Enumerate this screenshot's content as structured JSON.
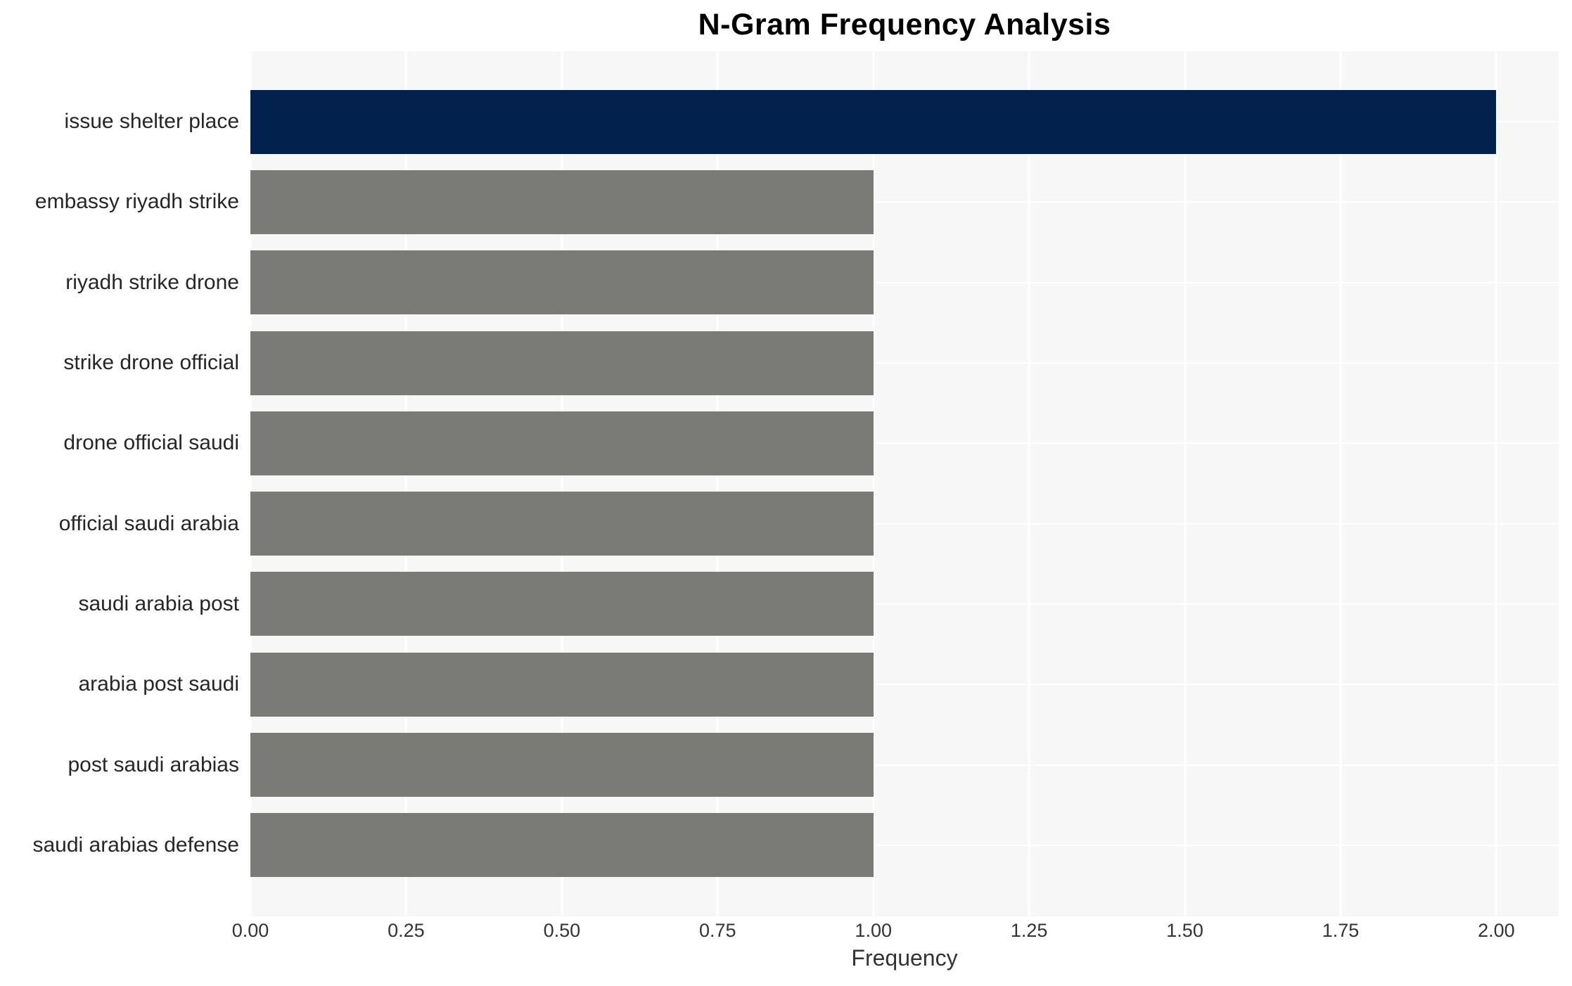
{
  "chart_data": {
    "type": "bar",
    "orientation": "horizontal",
    "title": "N-Gram Frequency Analysis",
    "xlabel": "Frequency",
    "ylabel": "",
    "categories": [
      "issue shelter place",
      "embassy riyadh strike",
      "riyadh strike drone",
      "strike drone official",
      "drone official saudi",
      "official saudi arabia",
      "saudi arabia post",
      "arabia post saudi",
      "post saudi arabias",
      "saudi arabias defense"
    ],
    "values": [
      2,
      1,
      1,
      1,
      1,
      1,
      1,
      1,
      1,
      1
    ],
    "bar_colors": [
      "#02224d",
      "#7a7a77",
      "#7a7a77",
      "#7a7a77",
      "#7a7a77",
      "#7a7a77",
      "#7a7a77",
      "#7a7a77",
      "#7a7a77",
      "#7a7a77"
    ],
    "xlim": [
      0,
      2.1
    ],
    "xticks": [
      0.0,
      0.25,
      0.5,
      0.75,
      1.0,
      1.25,
      1.5,
      1.75,
      2.0
    ],
    "xtick_labels": [
      "0.00",
      "0.25",
      "0.50",
      "0.75",
      "1.00",
      "1.25",
      "1.50",
      "1.75",
      "2.00"
    ],
    "grid": "on",
    "legend": "none",
    "colors": {
      "highlight": "#02224d",
      "base": "#7a7a77",
      "plot_background": "#f7f7f7",
      "gridline": "#ffffff",
      "page_background": "#ffffff",
      "tick_text": "#333333",
      "label_text": "#262626",
      "title_text": "#000000"
    }
  }
}
